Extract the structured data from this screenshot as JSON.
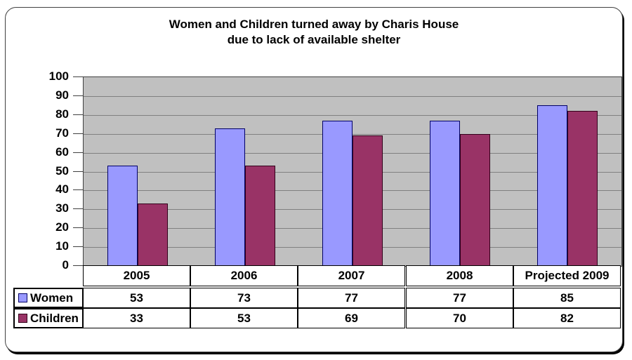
{
  "chart_data": {
    "type": "bar",
    "title": "Women and Children turned away by Charis House",
    "subtitle": "due to lack of available shelter",
    "categories": [
      "2005",
      "2006",
      "2007",
      "2008",
      "Projected 2009"
    ],
    "series": [
      {
        "name": "Women",
        "values": [
          53,
          73,
          77,
          77,
          85
        ],
        "fill": "#9999ff",
        "border": "#000066"
      },
      {
        "name": "Children",
        "values": [
          33,
          53,
          69,
          70,
          82
        ],
        "fill": "#993366",
        "border": "#33001a"
      }
    ],
    "xlabel": "",
    "ylabel": "",
    "ylim": [
      0,
      100
    ],
    "yticks": [
      100,
      90,
      80,
      70,
      60,
      50,
      40,
      30,
      20,
      10,
      0
    ],
    "grid": true,
    "legend_position": "data-table-left",
    "colors": {
      "plot_background": "#c0c0c0",
      "gridline": "#808080",
      "axis_border": "#404040",
      "table_border": "#000000",
      "text": "#000000",
      "page_background": "#ffffff"
    }
  }
}
